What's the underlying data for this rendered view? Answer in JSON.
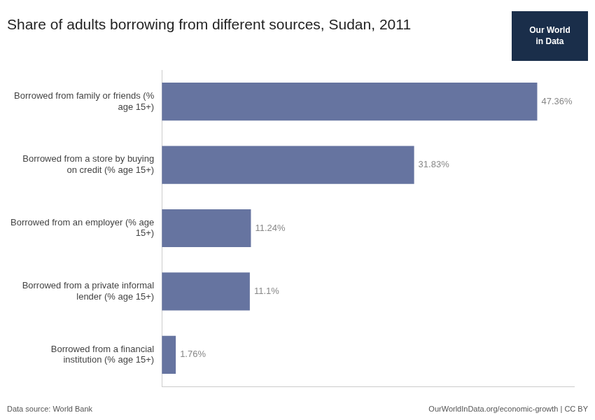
{
  "chart_data": {
    "type": "bar",
    "orientation": "horizontal",
    "title": "Share of adults borrowing from different sources, Sudan, 2011",
    "categories": [
      "Borrowed from a financial\ninstitution (% age 15+)",
      "Borrowed from a private informal\nlender (% age 15+)",
      "Borrowed from an employer (% age\n15+)",
      "Borrowed from a store by buying\non credit (% age 15+)",
      "Borrowed from family or friends (%\nage 15+)"
    ],
    "values": [
      1.76,
      11.1,
      11.24,
      31.83,
      47.36
    ],
    "value_labels": [
      "1.76%",
      "11.1%",
      "11.24%",
      "31.83%",
      "47.36%"
    ],
    "color": "#6674A0",
    "xlim": [
      0,
      52
    ],
    "data_labels": true,
    "tick_labels": "y",
    "grid": false,
    "annotations": [
      {
        "text": "Data source: World Bank"
      },
      {
        "text": "OurWorldInData.org/economic-growth | CC BY"
      },
      {
        "text": "Our World\nin Data",
        "color": "#1a2e4a"
      }
    ]
  }
}
